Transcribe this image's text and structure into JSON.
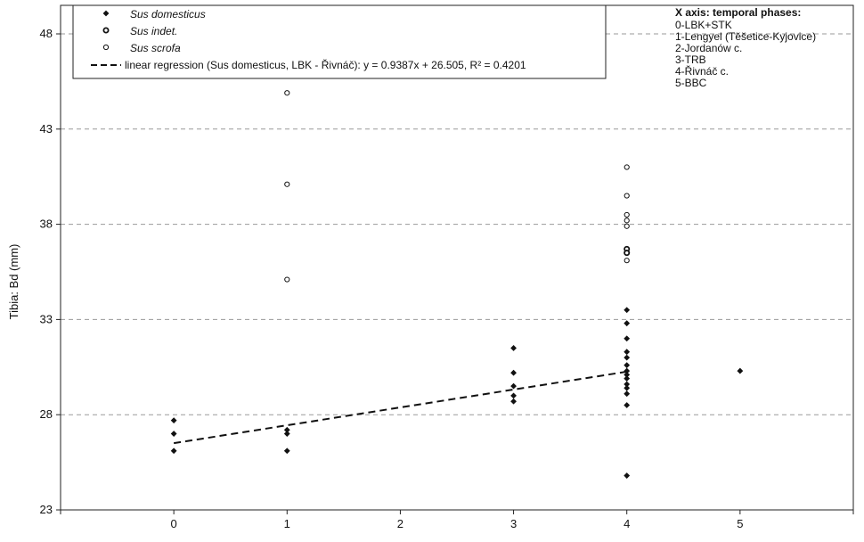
{
  "chart_data": {
    "type": "scatter",
    "ylabel": "Tibia: Bd (mm)",
    "xlabel": "",
    "xlim": [
      -1,
      6
    ],
    "ylim": [
      23,
      50
    ],
    "x_ticks": [
      "0",
      "1",
      "2",
      "3",
      "4",
      "5"
    ],
    "y_ticks": [
      "23",
      "28",
      "33",
      "38",
      "43",
      "48"
    ],
    "grid": "horizontal dashed",
    "legend": {
      "placement": "top-left",
      "entries": [
        {
          "label": "Sus domesticus",
          "marker": "filled-diamond",
          "italic": true
        },
        {
          "label": "Sus indet.",
          "marker": "thick-open-circle",
          "italic": true
        },
        {
          "label": "Sus scrofa",
          "marker": "open-circle",
          "italic": true
        },
        {
          "label": "linear regression (Sus domesticus, LBK - Řivnáč): y = 0.9387x + 26.505, R² = 0.4201",
          "marker": "dashed-line",
          "italic": false
        }
      ]
    },
    "annotation": {
      "title": "X axis: temporal phases:",
      "lines": [
        "0-LBK+STK",
        "1-Lengyel (Těšetice-Kyjovice)",
        "2-Jordanów c.",
        "3-TRB",
        "4-Řivnáč c.",
        "5-BBC"
      ]
    },
    "series": [
      {
        "name": "Sus domesticus",
        "marker": "filled-diamond",
        "color": "#111111",
        "points": [
          [
            0,
            27.7
          ],
          [
            0,
            27.0
          ],
          [
            0,
            26.1
          ],
          [
            1,
            27.2
          ],
          [
            1,
            27.0
          ],
          [
            1,
            26.1
          ],
          [
            3,
            31.5
          ],
          [
            3,
            30.2
          ],
          [
            3,
            29.5
          ],
          [
            3,
            29.0
          ],
          [
            3,
            28.7
          ],
          [
            4,
            33.5
          ],
          [
            4,
            32.8
          ],
          [
            4,
            32.0
          ],
          [
            4,
            31.3
          ],
          [
            4,
            31.0
          ],
          [
            4,
            30.6
          ],
          [
            4,
            30.3
          ],
          [
            4,
            30.1
          ],
          [
            4,
            29.9
          ],
          [
            4,
            29.6
          ],
          [
            4,
            29.4
          ],
          [
            4,
            29.1
          ],
          [
            4,
            28.5
          ],
          [
            4,
            24.8
          ],
          [
            5,
            30.3
          ]
        ]
      },
      {
        "name": "Sus indet.",
        "marker": "thick-open-circle",
        "color": "#111111",
        "points": [
          [
            4,
            36.7
          ],
          [
            4,
            36.5
          ]
        ]
      },
      {
        "name": "Sus scrofa",
        "marker": "open-circle",
        "color": "#111111",
        "points": [
          [
            1,
            44.9
          ],
          [
            1,
            40.1
          ],
          [
            1,
            35.1
          ],
          [
            4,
            41.0
          ],
          [
            4,
            39.5
          ],
          [
            4,
            38.5
          ],
          [
            4,
            38.2
          ],
          [
            4,
            37.9
          ],
          [
            4,
            36.1
          ]
        ]
      }
    ],
    "regression": {
      "slope": 0.9387,
      "intercept": 26.505,
      "x_range": [
        0,
        4
      ],
      "style": "dashed"
    }
  }
}
